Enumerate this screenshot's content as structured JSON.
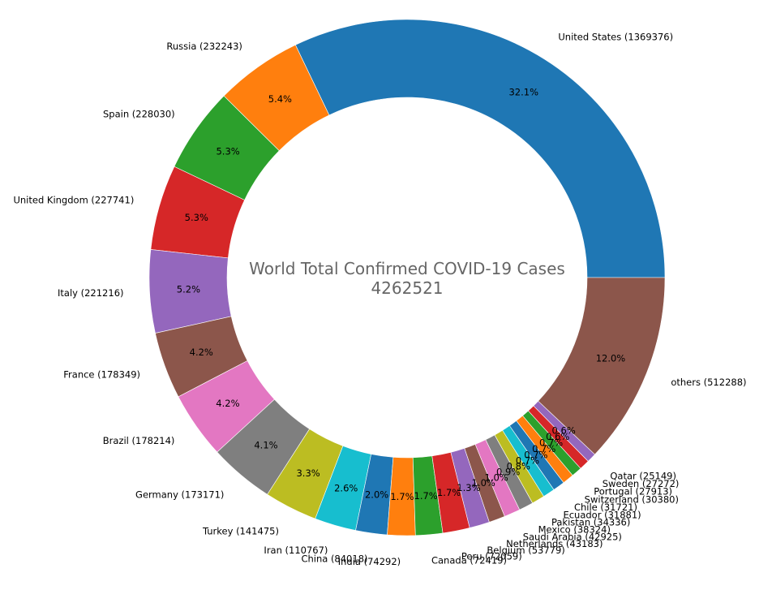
{
  "chart_data": {
    "type": "pie",
    "donut": true,
    "title": "",
    "center_text": [
      "World Total Confirmed COVID-19 Cases",
      "4262521"
    ],
    "start_angle_deg": 0,
    "direction": "counterclockwise",
    "slices": [
      {
        "label": "United States (1369376)",
        "value": 1369376,
        "pct": "32.1%",
        "color": "#1f77b4"
      },
      {
        "label": "Russia (232243)",
        "value": 232243,
        "pct": "5.4%",
        "color": "#ff7f0e"
      },
      {
        "label": "Spain (228030)",
        "value": 228030,
        "pct": "5.3%",
        "color": "#2ca02c"
      },
      {
        "label": "United Kingdom (227741)",
        "value": 227741,
        "pct": "5.3%",
        "color": "#d62728"
      },
      {
        "label": "Italy (221216)",
        "value": 221216,
        "pct": "5.2%",
        "color": "#9467bd"
      },
      {
        "label": "France (178349)",
        "value": 178349,
        "pct": "4.2%",
        "color": "#8c564b"
      },
      {
        "label": "Brazil (178214)",
        "value": 178214,
        "pct": "4.2%",
        "color": "#e377c2"
      },
      {
        "label": "Germany (173171)",
        "value": 173171,
        "pct": "4.1%",
        "color": "#7f7f7f"
      },
      {
        "label": "Turkey (141475)",
        "value": 141475,
        "pct": "3.3%",
        "color": "#bcbd22"
      },
      {
        "label": "Iran (110767)",
        "value": 110767,
        "pct": "2.6%",
        "color": "#17becf"
      },
      {
        "label": "China (84018)",
        "value": 84018,
        "pct": "2.0%",
        "color": "#1f77b4"
      },
      {
        "label": "India (74292)",
        "value": 74292,
        "pct": "1.7%",
        "color": "#ff7f0e"
      },
      {
        "label": "Canada (72419)",
        "value": 72419,
        "pct": "1.7%",
        "color": "#2ca02c"
      },
      {
        "label": "Peru (72059)",
        "value": 72059,
        "pct": "1.7%",
        "color": "#d62728"
      },
      {
        "label": "Belgium (53779)",
        "value": 53779,
        "pct": "1.3%",
        "color": "#9467bd"
      },
      {
        "label": "Netherlands (43183)",
        "value": 43183,
        "pct": "1.0%",
        "color": "#8c564b"
      },
      {
        "label": "Saudi Arabia (42925)",
        "value": 42925,
        "pct": "1.0%",
        "color": "#e377c2"
      },
      {
        "label": "Mexico (38324)",
        "value": 38324,
        "pct": "0.9%",
        "color": "#7f7f7f"
      },
      {
        "label": "Pakistan (34336)",
        "value": 34336,
        "pct": "0.8%",
        "color": "#bcbd22"
      },
      {
        "label": "Ecuador (31881)",
        "value": 31881,
        "pct": "0.7%",
        "color": "#17becf"
      },
      {
        "label": "Chile (31721)",
        "value": 31721,
        "pct": "0.7%",
        "color": "#1f77b4"
      },
      {
        "label": "Switzerland (30380)",
        "value": 30380,
        "pct": "0.7%",
        "color": "#ff7f0e"
      },
      {
        "label": "Portugal (27913)",
        "value": 27913,
        "pct": "0.7%",
        "color": "#2ca02c"
      },
      {
        "label": "Sweden (27272)",
        "value": 27272,
        "pct": "0.6%",
        "color": "#d62728"
      },
      {
        "label": "Qatar (25149)",
        "value": 25149,
        "pct": "0.6%",
        "color": "#9467bd"
      },
      {
        "label": "others (512288)",
        "value": 512288,
        "pct": "12.0%",
        "color": "#8c564b"
      }
    ]
  }
}
